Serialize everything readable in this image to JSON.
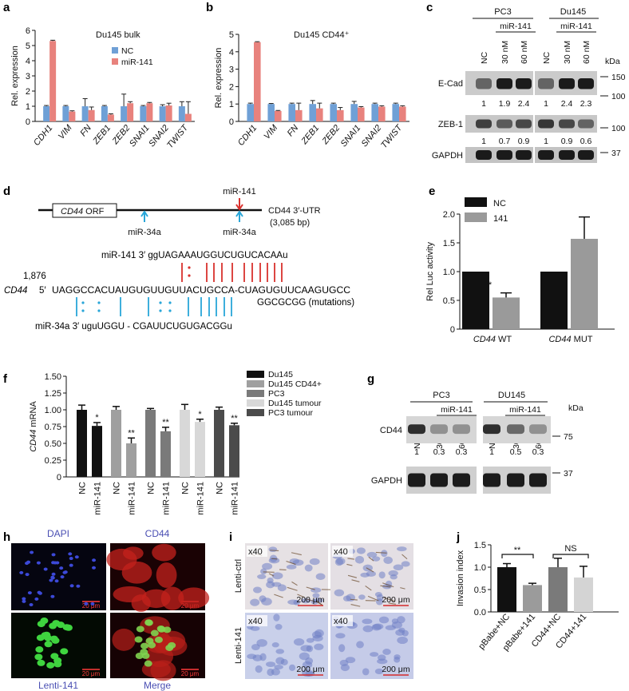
{
  "panel_labels": {
    "a": "a",
    "b": "b",
    "c": "c",
    "d": "d",
    "e": "e",
    "f": "f",
    "g": "g",
    "h": "h",
    "i": "i",
    "j": "j"
  },
  "chart_data": [
    {
      "id": "a",
      "type": "bar",
      "title": "Du145 bulk",
      "ylabel": "Rel. expression",
      "ylim": [
        0,
        6
      ],
      "yticks": [
        0,
        1,
        2,
        3,
        4,
        5,
        6
      ],
      "categories": [
        "CDH1",
        "VIM",
        "FN",
        "ZEB1",
        "ZEB2",
        "SNAI1",
        "SNAI2",
        "TWIST"
      ],
      "series": [
        {
          "name": "NC",
          "color": "#6fa0d6",
          "values": [
            1,
            1,
            1,
            1,
            1,
            1,
            1,
            1
          ],
          "err": [
            0.05,
            0.05,
            0.5,
            0.05,
            0.8,
            0.05,
            0.1,
            0.3
          ]
        },
        {
          "name": "miR-141",
          "color": "#e8827d",
          "values": [
            5.3,
            0.65,
            0.75,
            0.45,
            1.2,
            1.2,
            1.05,
            0.5
          ],
          "err": [
            0.05,
            0.05,
            0.2,
            0.05,
            0.1,
            0.05,
            0.15,
            0.8
          ]
        }
      ]
    },
    {
      "id": "b",
      "type": "bar",
      "title": "Du145 CD44⁺",
      "ylabel": "Rel. expression",
      "ylim": [
        0,
        5
      ],
      "yticks": [
        0,
        1,
        2,
        3,
        4,
        5
      ],
      "categories": [
        "CDH1",
        "VIM",
        "FN",
        "ZEB1",
        "ZEB2",
        "SNAI1",
        "SNAI2",
        "TWIST"
      ],
      "series": [
        {
          "name": "NC",
          "color": "#6fa0d6",
          "values": [
            1,
            1,
            1,
            1,
            1,
            1,
            1,
            1
          ],
          "err": [
            0.05,
            0.03,
            0.05,
            0.2,
            0.05,
            0.15,
            0.05,
            0.05
          ]
        },
        {
          "name": "miR-141",
          "color": "#e8827d",
          "values": [
            4.55,
            0.6,
            0.65,
            0.75,
            0.65,
            0.8,
            0.85,
            0.85
          ],
          "err": [
            0.03,
            0.03,
            0.4,
            0.3,
            0.15,
            0.05,
            0.05,
            0.05
          ]
        }
      ]
    },
    {
      "id": "e",
      "type": "bar",
      "ylabel": "Rel Luc activity",
      "ylim": [
        0,
        2.0
      ],
      "yticks": [
        "0",
        "0.5",
        "1.0",
        "1.5",
        "2.0"
      ],
      "categories": [
        "CD44 WT",
        "CD44 MUT"
      ],
      "series": [
        {
          "name": "NC",
          "color": "#111111",
          "values": [
            1.0,
            1.0
          ],
          "err": [
            0,
            0
          ]
        },
        {
          "name": "141",
          "color": "#9a9a9a",
          "values": [
            0.55,
            1.57
          ],
          "err": [
            0.08,
            0.38
          ]
        }
      ],
      "annotations": [
        "*"
      ]
    },
    {
      "id": "f",
      "type": "bar",
      "ylabel": "CD44 mRNA",
      "ylim": [
        0,
        1.5
      ],
      "yticks": [
        "0",
        "0.25",
        "0.50",
        "0.75",
        "1.00",
        "1.25",
        "1.50"
      ],
      "groups": [
        "Du145",
        "Du145 CD44+",
        "PC3",
        "Du145 tumour",
        "PC3 tumour"
      ],
      "group_colors": [
        "#111111",
        "#9f9f9f",
        "#7a7a7a",
        "#d8d8d8",
        "#4b4b4b"
      ],
      "bar_labels": [
        "NC",
        "miR-141"
      ],
      "values": [
        [
          1.0,
          0.76
        ],
        [
          1.0,
          0.5
        ],
        [
          1.0,
          0.68
        ],
        [
          1.0,
          0.82
        ],
        [
          1.0,
          0.77
        ]
      ],
      "err": [
        [
          0.07,
          0.05
        ],
        [
          0.05,
          0.08
        ],
        [
          0.02,
          0.06
        ],
        [
          0.08,
          0.04
        ],
        [
          0.04,
          0.03
        ]
      ],
      "stars": [
        "*",
        "**",
        "**",
        "*",
        "**"
      ]
    },
    {
      "id": "j",
      "type": "bar",
      "ylabel": "Invasion index",
      "ylim": [
        0,
        1.5
      ],
      "yticks": [
        "0.0",
        "0.5",
        "1.0",
        "1.5"
      ],
      "categories": [
        "pBabe+NC",
        "pBabe+141",
        "CD44+NC",
        "CD44+141"
      ],
      "colors": [
        "#111111",
        "#9b9b9b",
        "#7a7a7a",
        "#d4d4d4"
      ],
      "values": [
        1.0,
        0.6,
        1.0,
        0.77
      ],
      "err": [
        0.08,
        0.04,
        0.2,
        0.25
      ],
      "sig": [
        "**",
        "NS"
      ]
    }
  ],
  "blot_c": {
    "groups": [
      "PC3",
      "Du145"
    ],
    "mir_label": "miR-141",
    "lanes": [
      "NC",
      "30 nM",
      "60 nM",
      "NC",
      "30 nM",
      "60 nM"
    ],
    "kda_label": "kDa",
    "rows": [
      {
        "label": "E-Cad",
        "markers": [
          "150",
          "100"
        ],
        "quant": [
          "1",
          "1.9",
          "2.4",
          "1",
          "2.4",
          "2.3"
        ]
      },
      {
        "label": "ZEB-1",
        "markers": [
          "100"
        ],
        "quant": [
          "1",
          "0.7",
          "0.9",
          "1",
          "0.9",
          "0.6"
        ]
      },
      {
        "label": "GAPDH",
        "markers": [
          "37"
        ],
        "quant": []
      }
    ]
  },
  "blot_g": {
    "groups": [
      "PC3",
      "DU145"
    ],
    "mir_label": "miR-141",
    "lanes": [
      "NC",
      "30 nM",
      "60 nM",
      "NC",
      "30 nM",
      "60 nM"
    ],
    "kda_label": "kDa",
    "rows": [
      {
        "label": "CD44",
        "markers": [
          "75"
        ],
        "quant": [
          "1",
          "0.3",
          "0.3",
          "1",
          "0.5",
          "0.3"
        ]
      },
      {
        "label": "GAPDH",
        "markers": [
          "37"
        ],
        "quant": []
      }
    ]
  },
  "diagram_d": {
    "orf_italic": "CD44",
    "orf_rest": " ORF",
    "utr_label": "CD44 3′-UTR",
    "utr_length": "(3,085 bp)",
    "site_mir141": "miR-141",
    "site_34a_1": "miR-34a",
    "site_34a_2": "miR-34a",
    "mir141_seq": "miR-141 3′  ggUAGAAAUGGUCUGUCACAAu",
    "position": "1,876",
    "gene": "CD44",
    "five_prime": "5′",
    "target_seq": "UAGGCCACUAUGUGUUGUUACUGCCA-CUAGUGUUCAAGUGCC",
    "mutations": "GGCGCGG (mutations)",
    "mir34a_seq": "miR-34a 3′  uguUGGU - CGAUUCUGUGACGGu"
  },
  "micro_h": {
    "labels": [
      "DAPI",
      "CD44",
      "Lenti-141",
      "Merge"
    ],
    "scale": "20 μm",
    "label_color": "#4a4fb3"
  },
  "micro_i": {
    "mag": "x40",
    "rows": [
      "Lenti-ctrl",
      "Lenti-141"
    ],
    "scale": "200 μm"
  }
}
